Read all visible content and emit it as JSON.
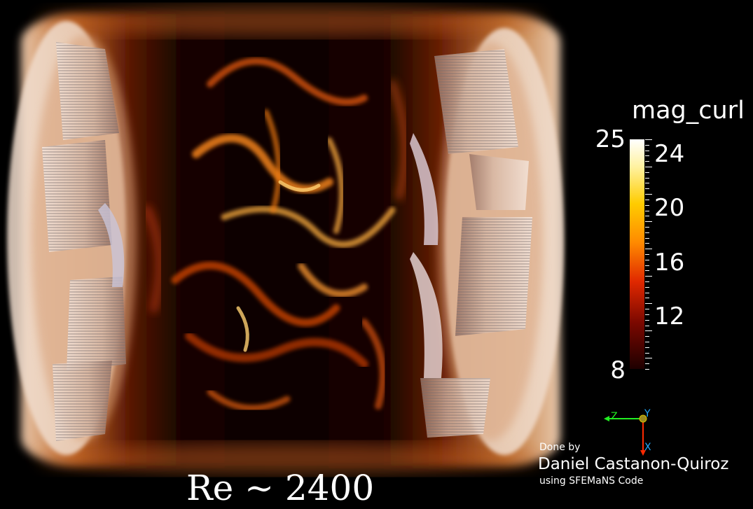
{
  "colorbar": {
    "title": "mag_curl",
    "range_min": "8",
    "range_max": "25",
    "labels": [
      "24",
      "20",
      "16",
      "12"
    ],
    "colors": [
      "#ffffff",
      "#ffec60",
      "#ffb000",
      "#ff6a00",
      "#e02000",
      "#8a0a00",
      "#220000"
    ]
  },
  "axes": {
    "x": "X",
    "y": "Y",
    "z": "Z",
    "x_color": "#ff2a00",
    "y_color": "#d4c000",
    "z_color": "#22ee22"
  },
  "credits": {
    "line1": "Done by",
    "line2": "Daniel Castanon-Quiroz",
    "line3": "using SFEMaNS Code"
  },
  "caption": "Re ~ 2400",
  "scene": {
    "description_icon": "volume-render-cylinder"
  }
}
